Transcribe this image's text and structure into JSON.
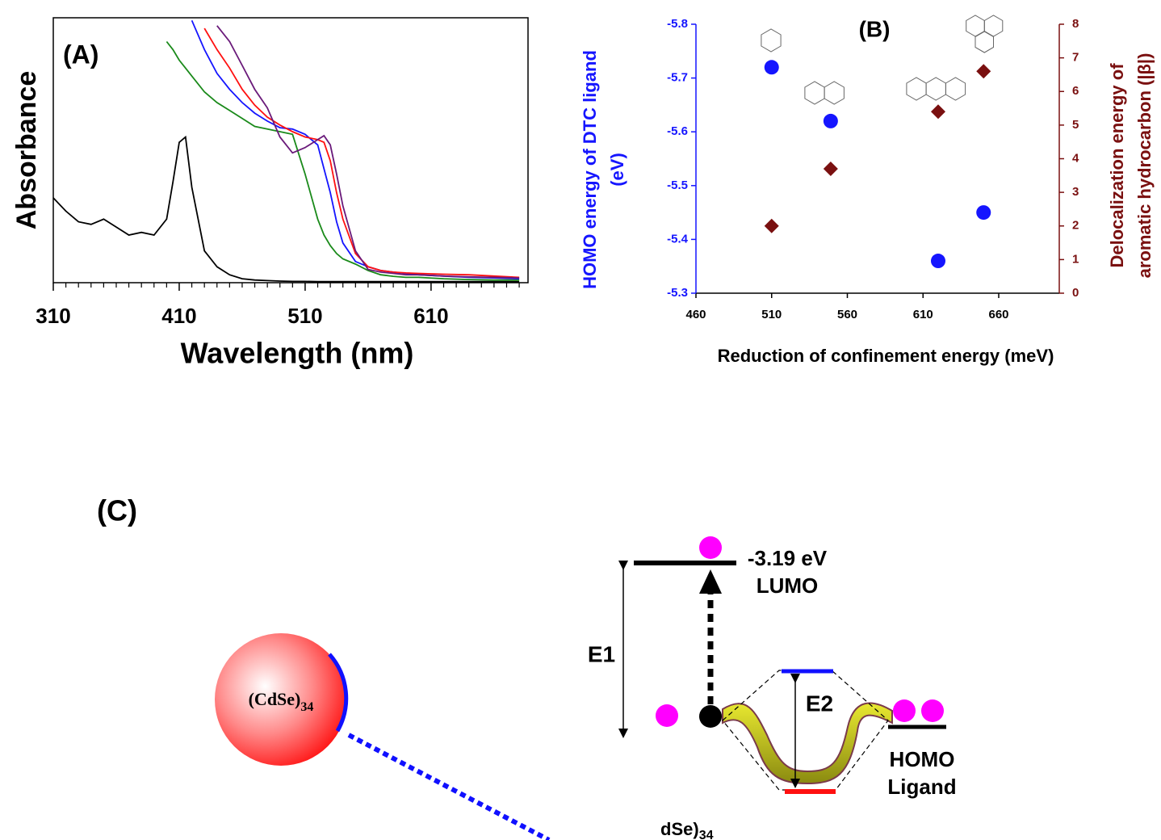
{
  "chart_data": [
    {
      "type": "line",
      "title": "(A)",
      "xlabel": "Wavelength (nm)",
      "ylabel": "Absorbance",
      "x": [
        310,
        320,
        330,
        340,
        350,
        360,
        370,
        380,
        390,
        400,
        405,
        410,
        415,
        420,
        430,
        440,
        450,
        460,
        470,
        480,
        490,
        500,
        510,
        520,
        525,
        530,
        535,
        540,
        550,
        560,
        570,
        580,
        590,
        600,
        620,
        640,
        660,
        680
      ],
      "xlim": [
        310,
        687
      ],
      "xticks": [
        310,
        410,
        510,
        610
      ],
      "xminorticks": [
        320,
        330,
        340,
        350,
        360,
        370,
        380,
        390,
        400,
        420,
        430,
        440,
        450,
        460,
        470,
        480,
        490,
        500,
        520,
        530,
        540,
        550,
        560,
        570,
        580,
        590,
        600,
        620,
        630,
        640,
        650,
        660,
        670,
        680
      ],
      "ylim": [
        0,
        1
      ],
      "series": [
        {
          "color": "#000000",
          "values": [
            0.32,
            0.27,
            0.23,
            0.22,
            0.24,
            0.21,
            0.18,
            0.19,
            0.18,
            0.24,
            0.38,
            0.53,
            0.55,
            0.36,
            0.12,
            0.06,
            0.03,
            0.015,
            0.01,
            0.008,
            0.006,
            0.005,
            0.005,
            0.004,
            0.004,
            0.004,
            0.004,
            0.004,
            0.004,
            0.004,
            0.004,
            0.004,
            0.004,
            0.004,
            0.004,
            0.004,
            0.004,
            0.004
          ]
        },
        {
          "color": "#1a8a1a",
          "values": [
            null,
            null,
            null,
            null,
            null,
            null,
            null,
            null,
            null,
            0.91,
            0.88,
            0.84,
            0.81,
            0.78,
            0.72,
            0.68,
            0.65,
            0.62,
            0.59,
            0.58,
            0.57,
            0.56,
            0.41,
            0.24,
            0.18,
            0.14,
            0.11,
            0.09,
            0.07,
            0.046,
            0.03,
            0.024,
            0.02,
            0.02,
            0.015,
            0.012,
            0.01,
            0.01
          ]
        },
        {
          "color": "#1515ff",
          "values": [
            null,
            null,
            null,
            null,
            null,
            null,
            null,
            null,
            null,
            null,
            null,
            null,
            null,
            0.99,
            0.88,
            0.79,
            0.73,
            0.68,
            0.64,
            0.61,
            0.585,
            0.58,
            0.56,
            0.52,
            0.43,
            0.34,
            0.23,
            0.15,
            0.08,
            0.06,
            0.046,
            0.04,
            0.035,
            0.03,
            0.025,
            0.02,
            0.018,
            0.015
          ]
        },
        {
          "color": "#ff1010",
          "values": [
            null,
            null,
            null,
            null,
            null,
            null,
            null,
            null,
            null,
            null,
            null,
            null,
            null,
            null,
            0.96,
            0.88,
            0.81,
            0.73,
            0.67,
            0.625,
            0.595,
            0.57,
            0.55,
            0.54,
            0.53,
            0.46,
            0.34,
            0.24,
            0.11,
            0.06,
            0.046,
            0.04,
            0.037,
            0.035,
            0.032,
            0.03,
            0.025,
            0.02
          ]
        },
        {
          "color": "#6a1a7a",
          "values": [
            null,
            null,
            null,
            null,
            null,
            null,
            null,
            null,
            null,
            null,
            null,
            null,
            null,
            null,
            null,
            0.97,
            0.91,
            0.82,
            0.73,
            0.66,
            0.55,
            0.49,
            0.51,
            0.54,
            0.555,
            0.52,
            0.41,
            0.29,
            0.12,
            0.05,
            0.04,
            0.035,
            0.03,
            0.03,
            0.025,
            0.022,
            0.02,
            0.018
          ]
        }
      ]
    },
    {
      "type": "scatter",
      "title": "(B)",
      "xlabel": "Reduction of confinement energy (meV)",
      "ylabel": [
        "HOMO energy of DTC ligand",
        "(eV)"
      ],
      "ylabel_color": "#1515ff",
      "y2label": [
        "Delocalization energy of",
        "aromatic hydrocarbon (|β|)"
      ],
      "y2label_color": "#7a1010",
      "x": [
        510,
        549,
        620,
        650
      ],
      "xlim": [
        460,
        700
      ],
      "xticks": [
        460,
        510,
        560,
        610,
        660
      ],
      "ylim": [
        -5.3,
        -5.8
      ],
      "yticks": [
        -5.8,
        -5.7,
        -5.6,
        -5.5,
        -5.4,
        -5.3
      ],
      "y2lim": [
        0,
        8
      ],
      "y2ticks": [
        0,
        1,
        2,
        3,
        4,
        5,
        6,
        7,
        8
      ],
      "series": [
        {
          "color": "#1515ff",
          "marker": "circle",
          "values": [
            -5.72,
            -5.62,
            -5.36,
            -5.45
          ]
        },
        {
          "color": "#7a1010",
          "marker": "diamond",
          "axis": "y2",
          "values": [
            2.0,
            3.7,
            5.4,
            6.6
          ]
        }
      ]
    }
  ],
  "diagram": {
    "label": "(C)",
    "particle": {
      "text": "(CdSe)",
      "subscript": "34"
    },
    "lumo": {
      "energy": "-3.19 eV",
      "label": "LUMO"
    },
    "e1": "E1",
    "e2": "E2",
    "homo": [
      "HOMO",
      "Ligand"
    ],
    "cut_label": {
      "text": "dSe)",
      "subscript": "34"
    }
  }
}
